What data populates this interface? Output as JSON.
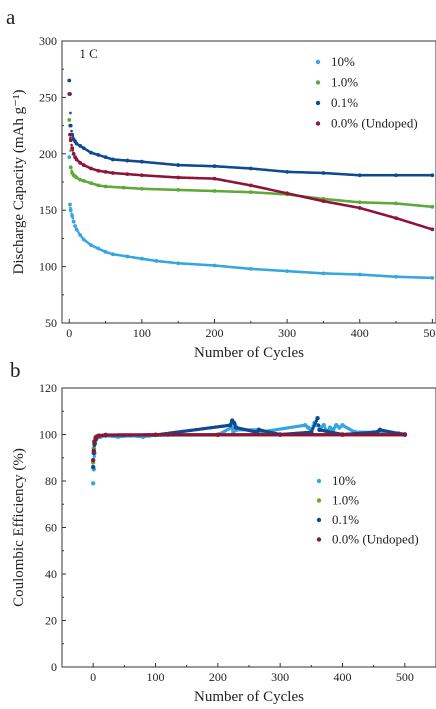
{
  "colors": {
    "s10": "#35a6e2",
    "s1": "#5fa83a",
    "s01": "#0f4a8f",
    "s00": "#8c1538",
    "axis": "#333333"
  },
  "panel_a": {
    "letter": "a"
  },
  "panel_b": {
    "letter": "b"
  },
  "chart_data": [
    {
      "type": "scatter",
      "title": "",
      "annotation": "1 C",
      "xlabel": "Number of Cycles",
      "ylabel": "Discharge Capacity (mAh g⁻¹)",
      "xlim": [
        -10,
        505
      ],
      "ylim": [
        50,
        300
      ],
      "xticks": [
        0,
        100,
        200,
        300,
        400,
        500
      ],
      "yticks": [
        50,
        100,
        150,
        200,
        250,
        300
      ],
      "grid": false,
      "legend_position": "top-right",
      "series": [
        {
          "name": "10%",
          "color_key": "s10",
          "x": [
            0,
            1,
            2,
            4,
            6,
            8,
            10,
            15,
            20,
            30,
            40,
            50,
            60,
            80,
            100,
            120,
            150,
            200,
            250,
            300,
            350,
            400,
            450,
            500
          ],
          "y": [
            197,
            155,
            150,
            145,
            140,
            136,
            133,
            128,
            124,
            119,
            116,
            113,
            111,
            109,
            107,
            105,
            103,
            101,
            98,
            96,
            94,
            93,
            91,
            90
          ]
        },
        {
          "name": "1.0%",
          "color_key": "s1",
          "x": [
            0,
            1,
            2,
            4,
            6,
            8,
            10,
            15,
            20,
            30,
            40,
            50,
            75,
            100,
            150,
            200,
            250,
            300,
            350,
            400,
            450,
            500
          ],
          "y": [
            230,
            225,
            188,
            183,
            181,
            180,
            179,
            177,
            176,
            174,
            172,
            171,
            170,
            169,
            168,
            167,
            166,
            164,
            160,
            157,
            156,
            153
          ]
        },
        {
          "name": "0.1%",
          "color_key": "s01",
          "x": [
            0,
            1,
            2,
            4,
            6,
            8,
            10,
            15,
            20,
            30,
            40,
            50,
            60,
            80,
            100,
            150,
            200,
            250,
            300,
            350,
            400,
            450,
            500
          ],
          "y": [
            265,
            253,
            225,
            217,
            213,
            211,
            209,
            207,
            205,
            201,
            199,
            197,
            195,
            194,
            193,
            190,
            189,
            187,
            184,
            183,
            181,
            181,
            181
          ]
        },
        {
          "name": "0.0% (Undoped)",
          "color_key": "s00",
          "x": [
            0,
            1,
            2,
            4,
            6,
            8,
            10,
            15,
            20,
            30,
            40,
            50,
            60,
            80,
            100,
            150,
            200,
            250,
            300,
            350,
            400,
            450,
            500
          ],
          "y": [
            253,
            217,
            212,
            205,
            200,
            197,
            195,
            192,
            190,
            187,
            185,
            184,
            183,
            182,
            181,
            179,
            178,
            172,
            165,
            158,
            152,
            143,
            133
          ]
        }
      ]
    },
    {
      "type": "scatter",
      "title": "",
      "xlabel": "Number of Cycles",
      "ylabel": "Coulombic Efficiency (%)",
      "xlim": [
        -50,
        550
      ],
      "ylim": [
        0,
        120
      ],
      "xticks": [
        0,
        100,
        200,
        300,
        400,
        500
      ],
      "yticks": [
        0,
        20,
        40,
        60,
        80,
        100,
        120
      ],
      "grid": false,
      "legend_position": "center-right",
      "series": [
        {
          "name": "10%",
          "color_key": "s10",
          "x": [
            0,
            1,
            2,
            3,
            5,
            8,
            12,
            20,
            40,
            60,
            80,
            90,
            120,
            200,
            222,
            225,
            228,
            230,
            265,
            268,
            340,
            345,
            350,
            355,
            360,
            365,
            370,
            375,
            380,
            385,
            390,
            395,
            400,
            420,
            450,
            460,
            490,
            500
          ],
          "y": [
            79,
            85,
            92,
            96,
            98,
            99,
            99,
            99.5,
            99,
            99.5,
            99,
            99.5,
            99.8,
            99.8,
            103,
            101,
            104,
            102,
            102,
            101,
            104,
            103,
            102,
            105,
            104,
            103,
            104,
            101,
            103,
            102,
            104,
            103,
            104,
            101,
            101,
            100.5,
            100.5,
            100.2
          ]
        },
        {
          "name": "1.0%",
          "color_key": "s1",
          "x": [
            0,
            1,
            2,
            4,
            8,
            20,
            100,
            200,
            300,
            400,
            500
          ],
          "y": [
            88,
            94,
            97,
            99,
            99.5,
            99.8,
            99.8,
            99.8,
            99.9,
            99.9,
            99.9
          ]
        },
        {
          "name": "0.1%",
          "color_key": "s01",
          "x": [
            0,
            1,
            2,
            4,
            8,
            20,
            100,
            220,
            223,
            226,
            229,
            262,
            266,
            300,
            350,
            360,
            363,
            400,
            455,
            460,
            500
          ],
          "y": [
            86,
            92,
            96,
            98,
            99.4,
            99.7,
            99.8,
            104,
            106,
            105,
            103,
            101,
            102,
            100,
            101,
            107,
            102,
            100,
            101,
            102,
            99.9
          ]
        },
        {
          "name": "0.0% (Undoped)",
          "color_key": "s00",
          "x": [
            0,
            1,
            2,
            4,
            6,
            10,
            20,
            100,
            200,
            300,
            400,
            500
          ],
          "y": [
            89,
            93,
            97,
            98.5,
            99,
            99.5,
            99.8,
            99.9,
            99.9,
            99.9,
            99.9,
            99.9
          ]
        }
      ]
    }
  ]
}
